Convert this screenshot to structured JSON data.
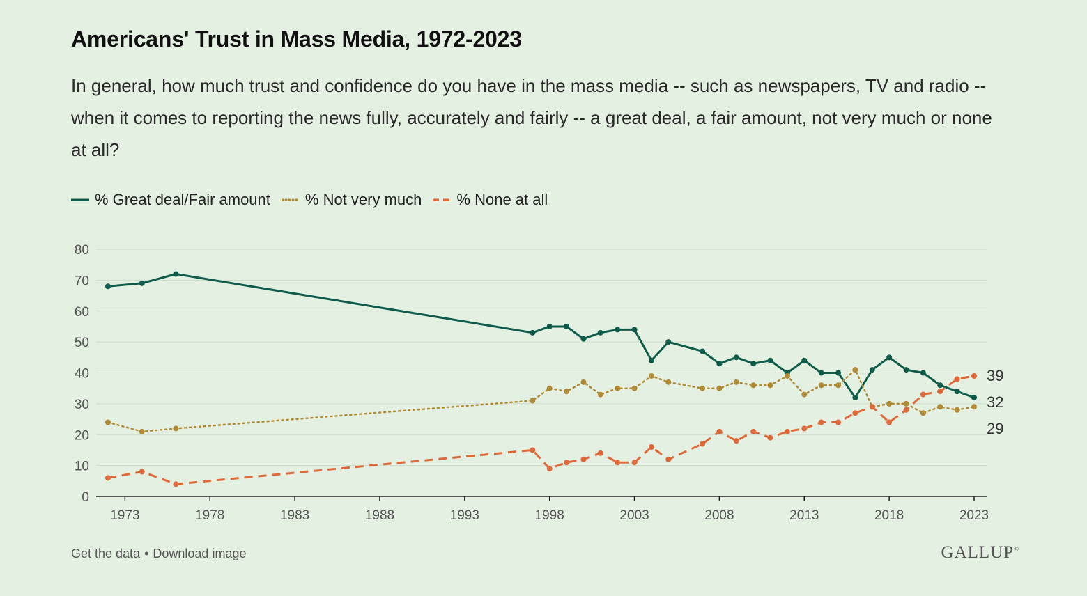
{
  "title": "Americans' Trust in Mass Media, 1972-2023",
  "subtitle": "In general, how much trust and confidence do you have in the mass media -- such as newspapers, TV and radio -- when it comes to reporting the news fully, accurately and fairly -- a great deal, a fair amount, not very much or none at all?",
  "footer": {
    "get_data": "Get the data",
    "separator": "•",
    "download": "Download image",
    "brand": "GALLUP",
    "brand_mark": "®"
  },
  "chart_data": {
    "type": "line",
    "title": "Americans' Trust in Mass Media, 1972-2023",
    "xlabel": "",
    "ylabel": "",
    "xlim": [
      1972,
      2023
    ],
    "ylim": [
      0,
      80
    ],
    "yticks": [
      0,
      10,
      20,
      30,
      40,
      50,
      60,
      70,
      80
    ],
    "xticks": [
      1973,
      1978,
      1983,
      1988,
      1993,
      1998,
      2003,
      2008,
      2013,
      2018,
      2023
    ],
    "grid": true,
    "legend_position": "top-left",
    "x": [
      1972,
      1974,
      1976,
      1997,
      1998,
      1999,
      2000,
      2001,
      2002,
      2003,
      2004,
      2005,
      2007,
      2008,
      2009,
      2010,
      2011,
      2012,
      2013,
      2014,
      2015,
      2016,
      2017,
      2018,
      2019,
      2020,
      2021,
      2022,
      2023
    ],
    "series": [
      {
        "name": "% Great deal/Fair amount",
        "color": "#0f5c4a",
        "style": "solid",
        "end_label": "32",
        "values": [
          68,
          69,
          72,
          53,
          55,
          55,
          51,
          53,
          54,
          54,
          44,
          50,
          47,
          43,
          45,
          43,
          44,
          40,
          44,
          40,
          40,
          32,
          41,
          45,
          41,
          40,
          36,
          34,
          32
        ]
      },
      {
        "name": "% Not very much",
        "color": "#b08a35",
        "style": "dotted",
        "end_label": "29",
        "values": [
          24,
          21,
          22,
          31,
          35,
          34,
          37,
          33,
          35,
          35,
          39,
          37,
          35,
          35,
          37,
          36,
          36,
          39,
          33,
          36,
          36,
          41,
          29,
          30,
          30,
          27,
          29,
          28,
          29
        ]
      },
      {
        "name": "% None at all",
        "color": "#e0693a",
        "style": "dashed",
        "end_label": "39",
        "values": [
          6,
          8,
          4,
          15,
          9,
          11,
          12,
          14,
          11,
          11,
          16,
          12,
          17,
          21,
          18,
          21,
          19,
          21,
          22,
          24,
          24,
          27,
          29,
          24,
          28,
          33,
          34,
          38,
          39
        ]
      }
    ]
  }
}
